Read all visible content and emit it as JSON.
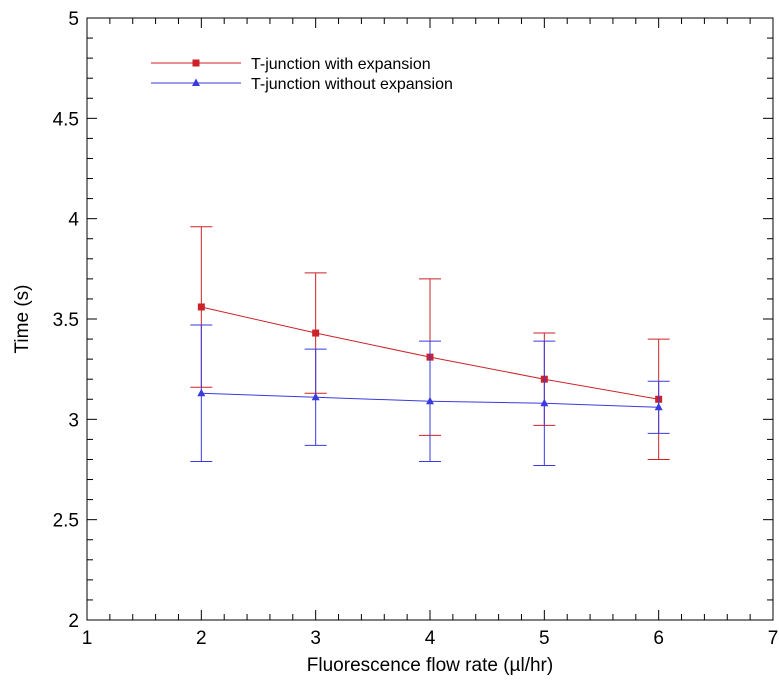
{
  "chart_data": {
    "type": "line",
    "title": "",
    "xlabel": "Fluorescence flow rate (µl/hr)",
    "ylabel": "Time (s)",
    "xlim": [
      1,
      7
    ],
    "ylim": [
      2,
      5
    ],
    "x_ticks": [
      "1",
      "2",
      "3",
      "4",
      "5",
      "6",
      "7"
    ],
    "y_ticks": [
      "2",
      "2.5",
      "3",
      "3.5",
      "4",
      "4.5",
      "5"
    ],
    "grid": false,
    "legend_position": "top-left",
    "series": [
      {
        "name": "T-junction with expansion",
        "color": "#cc2229",
        "marker": "square",
        "x": [
          2,
          3,
          4,
          5,
          6
        ],
        "y": [
          3.56,
          3.43,
          3.31,
          3.2,
          3.1
        ],
        "err_low": [
          3.16,
          3.13,
          2.92,
          2.97,
          2.8
        ],
        "err_high": [
          3.96,
          3.73,
          3.7,
          3.43,
          3.4
        ]
      },
      {
        "name": "T-junction without expansion",
        "color": "#3a3adf",
        "marker": "triangle",
        "x": [
          2,
          3,
          4,
          5,
          6
        ],
        "y": [
          3.13,
          3.11,
          3.09,
          3.08,
          3.06
        ],
        "err_low": [
          2.79,
          2.87,
          2.79,
          2.77,
          2.93
        ],
        "err_high": [
          3.47,
          3.35,
          3.39,
          3.39,
          3.19
        ]
      }
    ]
  }
}
